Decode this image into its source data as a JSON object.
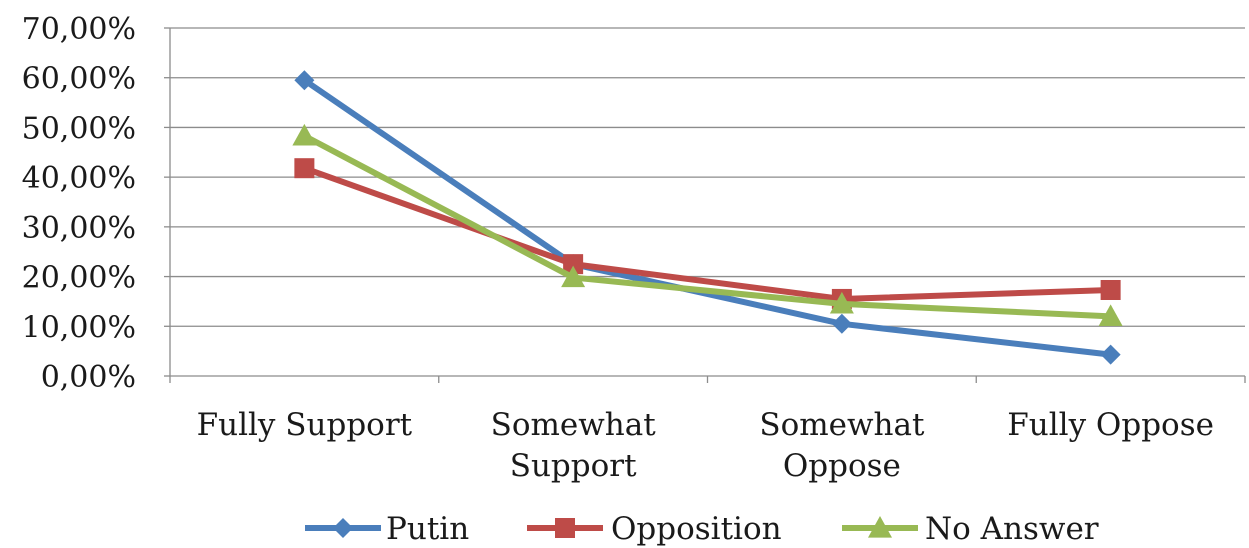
{
  "chart_data": {
    "type": "line",
    "categories": [
      "Fully Support",
      "Somewhat Support",
      "Somewhat Oppose",
      "Fully Oppose"
    ],
    "category_lines": [
      [
        "Fully Support"
      ],
      [
        "Somewhat",
        "Support"
      ],
      [
        "Somewhat",
        "Oppose"
      ],
      [
        "Fully Oppose"
      ]
    ],
    "series": [
      {
        "name": "Putin",
        "values": [
          59.5,
          22.5,
          10.5,
          4.3
        ],
        "color": "#4a7ebb",
        "marker": "diamond"
      },
      {
        "name": "Opposition",
        "values": [
          41.8,
          22.5,
          15.5,
          17.3
        ],
        "color": "#be4b48",
        "marker": "square"
      },
      {
        "name": "No Answer",
        "values": [
          48.3,
          19.8,
          14.5,
          12.0
        ],
        "color": "#98b954",
        "marker": "triangle"
      }
    ],
    "ylim": [
      0,
      70
    ],
    "yticks": [
      0,
      10,
      20,
      30,
      40,
      50,
      60,
      70
    ],
    "ytick_labels": [
      "0,00%",
      "10,00%",
      "20,00%",
      "30,00%",
      "40,00%",
      "50,00%",
      "60,00%",
      "70,00%"
    ],
    "grid": true,
    "legend_position": "bottom"
  }
}
